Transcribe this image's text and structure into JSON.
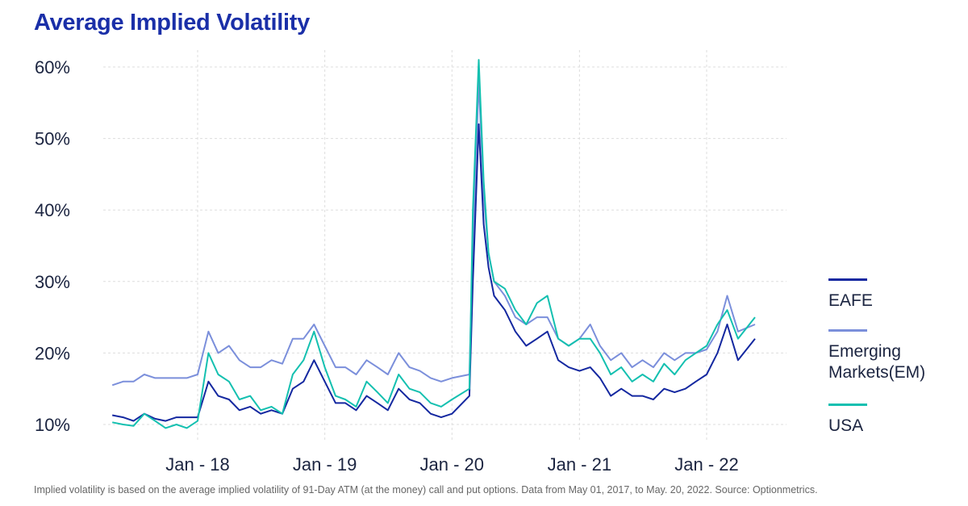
{
  "title": "Average Implied Volatility",
  "footnote": "Implied volatility is based on the average implied volatility of 91-Day ATM (at the money) call and put options. Data from May 01, 2017, to May. 20, 2022. Source: Optionmetrics.",
  "chart_data": {
    "type": "line",
    "title": "Average Implied Volatility",
    "xlabel": "",
    "ylabel": "",
    "ylim": [
      10,
      60
    ],
    "y_ticks": [
      "10%",
      "20%",
      "30%",
      "40%",
      "50%",
      "60%"
    ],
    "x_ticks": [
      {
        "date": "2018-01-01",
        "label": "Jan - 18"
      },
      {
        "date": "2019-01-01",
        "label": "Jan - 19"
      },
      {
        "date": "2020-01-01",
        "label": "Jan - 20"
      },
      {
        "date": "2021-01-01",
        "label": "Jan - 21"
      },
      {
        "date": "2022-01-01",
        "label": "Jan - 22"
      }
    ],
    "grid": true,
    "legend_position": "right",
    "x": [
      "2017-05-01",
      "2017-06-01",
      "2017-07-01",
      "2017-08-01",
      "2017-09-01",
      "2017-10-01",
      "2017-11-01",
      "2017-12-01",
      "2018-01-01",
      "2018-02-01",
      "2018-03-01",
      "2018-04-01",
      "2018-05-01",
      "2018-06-01",
      "2018-07-01",
      "2018-08-01",
      "2018-09-01",
      "2018-10-01",
      "2018-11-01",
      "2018-12-01",
      "2019-01-01",
      "2019-02-01",
      "2019-03-01",
      "2019-04-01",
      "2019-05-01",
      "2019-06-01",
      "2019-07-01",
      "2019-08-01",
      "2019-09-01",
      "2019-10-01",
      "2019-11-01",
      "2019-12-01",
      "2020-01-01",
      "2020-02-20",
      "2020-03-01",
      "2020-03-18",
      "2020-04-01",
      "2020-04-15",
      "2020-05-01",
      "2020-06-01",
      "2020-07-01",
      "2020-08-01",
      "2020-09-01",
      "2020-10-01",
      "2020-11-01",
      "2020-12-01",
      "2021-01-01",
      "2021-02-01",
      "2021-03-01",
      "2021-04-01",
      "2021-05-01",
      "2021-06-01",
      "2021-07-01",
      "2021-08-01",
      "2021-09-01",
      "2021-10-01",
      "2021-11-01",
      "2021-12-01",
      "2022-01-01",
      "2022-02-01",
      "2022-03-01",
      "2022-04-01",
      "2022-05-20"
    ],
    "series": [
      {
        "name": "EAFE",
        "color": "#1428a0",
        "values": [
          11.3,
          11,
          10.5,
          11.5,
          10.8,
          10.5,
          11,
          11,
          11,
          16,
          14,
          13.5,
          12,
          12.5,
          11.5,
          12,
          11.5,
          15,
          16,
          19,
          16,
          13,
          13,
          12,
          14,
          13,
          12,
          15,
          13.5,
          13,
          11.5,
          11,
          11.5,
          14,
          30,
          52,
          38,
          32,
          28,
          26,
          23,
          21,
          22,
          23,
          19,
          18,
          17.5,
          18,
          16.5,
          14,
          15,
          14,
          14,
          13.5,
          15,
          14.5,
          15,
          16,
          17,
          20,
          24,
          19,
          22
        ]
      },
      {
        "name": "Emerging Markets(EM)",
        "color": "#7b8fdb",
        "values": [
          15.5,
          16,
          16,
          17,
          16.5,
          16.5,
          16.5,
          16.5,
          17,
          23,
          20,
          21,
          19,
          18,
          18,
          19,
          18.5,
          22,
          22,
          24,
          21,
          18,
          18,
          17,
          19,
          18,
          17,
          20,
          18,
          17.5,
          16.5,
          16,
          16.5,
          17,
          35,
          58,
          42,
          34,
          30,
          28,
          25,
          24,
          25,
          25,
          22,
          21,
          22,
          24,
          21,
          19,
          20,
          18,
          19,
          18,
          20,
          19,
          20,
          20,
          20.5,
          23,
          28,
          23,
          24
        ]
      },
      {
        "name": "USA",
        "color": "#14c0b0",
        "values": [
          10.3,
          10,
          9.8,
          11.5,
          10.5,
          9.5,
          10,
          9.5,
          10.5,
          20,
          17,
          16,
          13.5,
          14,
          12,
          12.5,
          11.5,
          17,
          19,
          23,
          18,
          14,
          13.5,
          12.5,
          16,
          14.5,
          13,
          17,
          15,
          14.5,
          13,
          12.5,
          13.5,
          15,
          40,
          61,
          44,
          34,
          30,
          29,
          26,
          24,
          27,
          28,
          22,
          21,
          22,
          22,
          20,
          17,
          18,
          16,
          17,
          16,
          18.5,
          17,
          19,
          20,
          21,
          24,
          26,
          22,
          25
        ]
      }
    ]
  }
}
